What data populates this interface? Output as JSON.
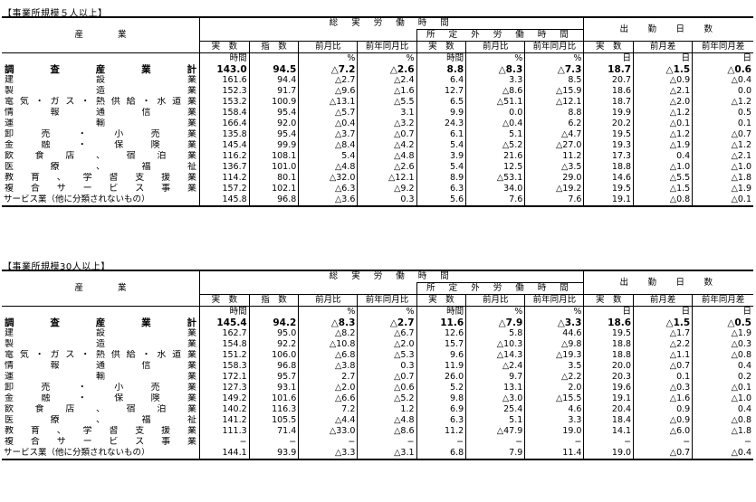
{
  "sections": [
    {
      "title": "【事業所規模５人以上】",
      "headers": {
        "industry": "産　　　　業",
        "total_hours": "総 実 労 働 時 間",
        "overtime": "所 定 外 労 働 時 間",
        "days": "出　勤　日　数",
        "sub": [
          "実　数",
          "指　数",
          "前月比",
          "前年同月比",
          "実　数",
          "前月比",
          "前年同月比",
          "実　数",
          "前月差",
          "前年同月差"
        ],
        "units": [
          "時間",
          "",
          "%",
          "%",
          "時間",
          "%",
          "%",
          "日",
          "日",
          "日"
        ]
      },
      "rows": [
        {
          "name": "調査産業計",
          "vals": [
            "143.0",
            "94.5",
            "△7.2",
            "△2.6",
            "8.8",
            "△8.3",
            "△7.3",
            "18.7",
            "△1.5",
            "△0.6"
          ]
        },
        {
          "name": "建設業",
          "vals": [
            "161.6",
            "94.4",
            "△2.7",
            "△2.4",
            "6.4",
            "3.3",
            "8.5",
            "20.7",
            "△0.9",
            "△0.4"
          ]
        },
        {
          "name": "製造業",
          "vals": [
            "152.3",
            "91.7",
            "△9.6",
            "△1.6",
            "12.7",
            "△8.6",
            "△15.9",
            "18.6",
            "△2.1",
            "0.0"
          ]
        },
        {
          "name": "電気・ガス・熱供給・水道業",
          "vals": [
            "153.2",
            "100.9",
            "△13.1",
            "△5.5",
            "6.5",
            "△51.1",
            "△12.1",
            "18.7",
            "△2.0",
            "△1.2"
          ]
        },
        {
          "name": "情報通信業",
          "vals": [
            "158.4",
            "95.4",
            "△5.7",
            "3.1",
            "9.9",
            "0.0",
            "8.8",
            "19.9",
            "△1.2",
            "0.5"
          ]
        },
        {
          "name": "運輸業",
          "vals": [
            "166.4",
            "92.0",
            "△0.4",
            "△3.2",
            "24.3",
            "△0.4",
            "6.2",
            "20.2",
            "△0.1",
            "0.1"
          ]
        },
        {
          "name": "卸売・小売業",
          "vals": [
            "135.8",
            "95.4",
            "△3.7",
            "△0.7",
            "6.1",
            "5.1",
            "△4.7",
            "19.5",
            "△1.2",
            "△0.7"
          ]
        },
        {
          "name": "金融・保険業",
          "vals": [
            "145.4",
            "99.9",
            "△8.4",
            "△4.2",
            "5.4",
            "△5.2",
            "△27.0",
            "19.3",
            "△1.9",
            "△1.2"
          ]
        },
        {
          "name": "飲食店、宿泊業",
          "vals": [
            "116.2",
            "108.1",
            "5.4",
            "△4.8",
            "3.9",
            "21.6",
            "11.2",
            "17.3",
            "0.4",
            "△2.1"
          ]
        },
        {
          "name": "医療、福祉",
          "vals": [
            "136.7",
            "101.0",
            "△4.8",
            "△2.6",
            "5.4",
            "12.5",
            "△3.5",
            "18.8",
            "△1.0",
            "△1.0"
          ]
        },
        {
          "name": "教育、学習支援業",
          "vals": [
            "114.2",
            "80.1",
            "△32.0",
            "△12.1",
            "8.9",
            "△53.1",
            "29.0",
            "14.6",
            "△5.5",
            "△1.8"
          ]
        },
        {
          "name": "複合サービス事業",
          "vals": [
            "157.2",
            "102.1",
            "△6.3",
            "△9.2",
            "6.3",
            "34.0",
            "△19.2",
            "19.5",
            "△1.5",
            "△1.9"
          ]
        },
        {
          "name": "サービス業（他に分類されないもの）",
          "vals": [
            "145.8",
            "96.8",
            "△3.6",
            "0.3",
            "5.6",
            "7.6",
            "7.6",
            "19.1",
            "△0.8",
            "△0.1"
          ]
        }
      ]
    },
    {
      "title": "【事業所規模30人以上】",
      "headers": {
        "industry": "産　　　　業",
        "total_hours": "総 実 労 働 時 間",
        "overtime": "所 定 外 労 働 時 間",
        "days": "出　勤　日　数",
        "sub": [
          "実　数",
          "指　数",
          "前月比",
          "前年同月比",
          "実　数",
          "前月比",
          "前年同月比",
          "実　数",
          "前月差",
          "前年同月差"
        ],
        "units": [
          "時間",
          "",
          "%",
          "%",
          "時間",
          "%",
          "%",
          "日",
          "日",
          "日"
        ]
      },
      "rows": [
        {
          "name": "調査産業計",
          "vals": [
            "145.4",
            "94.2",
            "△8.3",
            "△2.7",
            "11.6",
            "△7.9",
            "△3.3",
            "18.6",
            "△1.5",
            "△0.5"
          ]
        },
        {
          "name": "建設業",
          "vals": [
            "162.7",
            "95.0",
            "△8.2",
            "△6.7",
            "12.6",
            "5.8",
            "44.6",
            "19.5",
            "△1.7",
            "△1.9"
          ]
        },
        {
          "name": "製造業",
          "vals": [
            "154.8",
            "92.2",
            "△10.8",
            "△2.0",
            "15.7",
            "△10.3",
            "△9.8",
            "18.8",
            "△2.2",
            "△0.3"
          ]
        },
        {
          "name": "電気・ガス・熱供給・水道業",
          "vals": [
            "151.2",
            "106.0",
            "△6.8",
            "△5.3",
            "9.6",
            "△14.3",
            "△19.3",
            "18.8",
            "△1.1",
            "△0.8"
          ]
        },
        {
          "name": "情報通信業",
          "vals": [
            "158.3",
            "96.8",
            "△3.8",
            "0.3",
            "11.9",
            "△2.4",
            "3.5",
            "20.0",
            "△0.7",
            "0.4"
          ]
        },
        {
          "name": "運輸業",
          "vals": [
            "172.1",
            "95.7",
            "2.7",
            "△0.7",
            "26.0",
            "9.7",
            "△2.2",
            "20.3",
            "0.1",
            "0.2"
          ]
        },
        {
          "name": "卸売・小売業",
          "vals": [
            "127.3",
            "93.1",
            "△2.0",
            "△0.6",
            "5.2",
            "13.1",
            "2.0",
            "19.6",
            "△0.3",
            "△0.1"
          ]
        },
        {
          "name": "金融・保険業",
          "vals": [
            "149.2",
            "101.6",
            "△6.6",
            "△5.2",
            "9.8",
            "△3.0",
            "△15.5",
            "19.1",
            "△1.6",
            "△1.0"
          ]
        },
        {
          "name": "飲食店、宿泊業",
          "vals": [
            "140.2",
            "116.3",
            "7.2",
            "1.2",
            "6.9",
            "25.4",
            "4.6",
            "20.4",
            "0.9",
            "0.4"
          ]
        },
        {
          "name": "医療、福祉",
          "vals": [
            "141.2",
            "105.5",
            "△4.4",
            "△4.8",
            "6.3",
            "5.1",
            "3.3",
            "18.4",
            "△0.9",
            "△0.8"
          ]
        },
        {
          "name": "教育、学習支援業",
          "vals": [
            "111.3",
            "71.4",
            "△33.0",
            "△8.6",
            "11.2",
            "△47.9",
            "19.0",
            "14.1",
            "△6.0",
            "△1.8"
          ]
        },
        {
          "name": "複合サービス事業",
          "vals": [
            "−",
            "−",
            "−",
            "−",
            "−",
            "−",
            "−",
            "−",
            "−",
            "−"
          ]
        },
        {
          "name": "サービス業（他に分類されないもの）",
          "vals": [
            "144.1",
            "93.9",
            "△3.3",
            "△3.1",
            "6.8",
            "7.9",
            "11.4",
            "19.0",
            "△0.7",
            "△0.4"
          ]
        }
      ]
    }
  ]
}
